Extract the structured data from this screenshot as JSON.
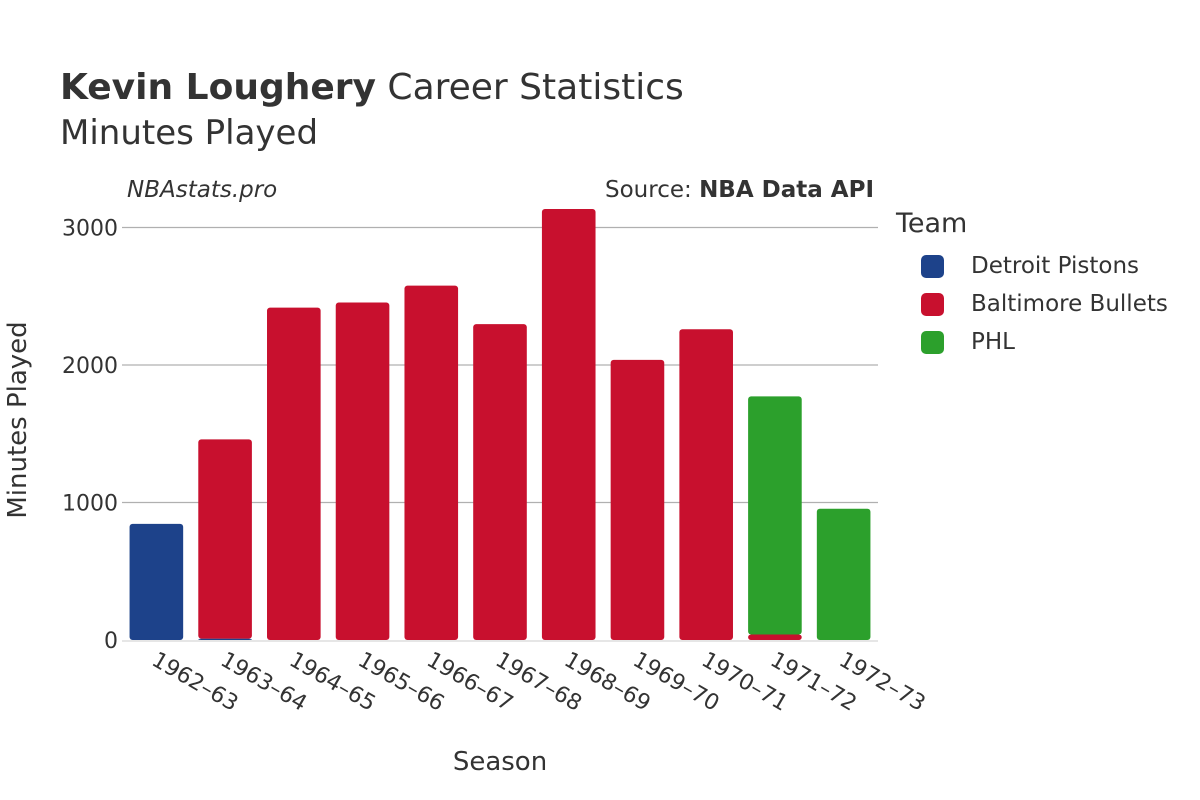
{
  "header": {
    "title_bold": "Kevin Loughery",
    "title_rest": " Career Statistics",
    "subtitle": "Minutes Played",
    "credit_site": "NBAstats.pro",
    "credit_source_prefix": "Source: ",
    "credit_source_bold": "NBA Data API"
  },
  "legend": {
    "title": "Team",
    "items": [
      {
        "label": "Detroit Pistons",
        "color": "#1d428a"
      },
      {
        "label": "Baltimore Bullets",
        "color": "#c8102e"
      },
      {
        "label": "PHL",
        "color": "#2ca02c"
      }
    ]
  },
  "chart_data": {
    "type": "bar",
    "stacked": true,
    "title": "Kevin Loughery Career Statistics",
    "subtitle": "Minutes Played",
    "xlabel": "Season",
    "ylabel": "Minutes Played",
    "ylim": [
      0,
      3200
    ],
    "yticks": [
      0,
      1000,
      2000,
      3000
    ],
    "grid": true,
    "legend_position": "right",
    "categories": [
      "1962–63",
      "1963–64",
      "1964–65",
      "1965–66",
      "1966–67",
      "1967–68",
      "1968–69",
      "1969–70",
      "1970–71",
      "1971–72",
      "1972–73"
    ],
    "series": [
      {
        "name": "Detroit Pistons",
        "color": "#1d428a",
        "values": [
          845,
          10,
          0,
          0,
          0,
          0,
          0,
          0,
          0,
          0,
          0
        ]
      },
      {
        "name": "Baltimore Bullets",
        "color": "#c8102e",
        "values": [
          0,
          1449,
          2417,
          2455,
          2577,
          2297,
          3135,
          2037,
          2260,
          40,
          0
        ]
      },
      {
        "name": "PHL",
        "color": "#2ca02c",
        "values": [
          0,
          0,
          0,
          0,
          0,
          0,
          0,
          0,
          0,
          1732,
          955
        ]
      }
    ]
  }
}
